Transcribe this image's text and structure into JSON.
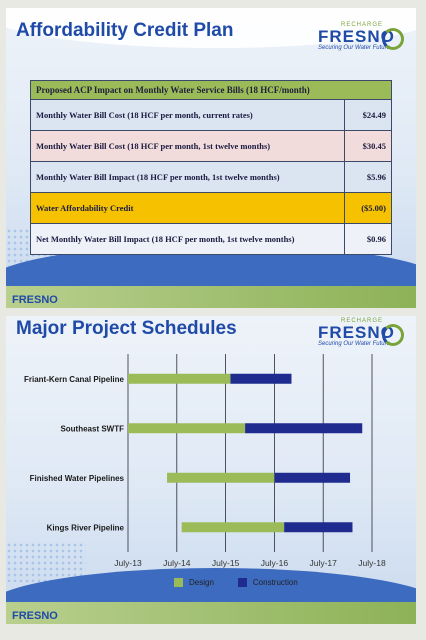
{
  "slide1": {
    "title": "Affordability Credit Plan",
    "logo": {
      "top": "RECHARGE",
      "main": "FRESNO",
      "tagline": "Securing Our Water Future"
    },
    "footer_logo": "FRESNO",
    "table": {
      "header": "Proposed ACP Impact on Monthly Water Service Bills (18 HCF/month)",
      "rows": [
        {
          "label": "Monthly Water Bill Cost (18 HCF per month, current rates)",
          "value": "$24.49"
        },
        {
          "label": "Monthly Water Bill Cost (18 HCF per month, 1st twelve months)",
          "value": "$30.45"
        },
        {
          "label": "Monthly Water Bill Impact (18 HCF per month, 1st twelve months)",
          "value": "$5.96"
        },
        {
          "label": "Water Affordability Credit",
          "value": "($5.00)"
        },
        {
          "label": "Net Monthly Water Bill Impact (18 HCF per month, 1st twelve months)",
          "value": "$0.96"
        }
      ]
    }
  },
  "slide2": {
    "title": "Major Project Schedules",
    "logo": {
      "top": "RECHARGE",
      "main": "FRESNO",
      "tagline": "Securing Our Water Future"
    },
    "footer_logo": "FRESNO"
  },
  "colors": {
    "design": "#9bbb59",
    "construction": "#1f2b8f",
    "title": "#1f4aa8"
  },
  "chart_data": {
    "type": "bar",
    "orientation": "horizontal-gantt",
    "title": "Major Project Schedules",
    "x_ticks": [
      "July-13",
      "July-14",
      "July-15",
      "July-16",
      "July-17",
      "July-18"
    ],
    "xlim": [
      2013.5,
      2018.5
    ],
    "categories": [
      "Friant-Kern Canal Pipeline",
      "Southeast SWTF",
      "Finished Water Pipelines",
      "Kings River Pipeline"
    ],
    "series": [
      {
        "name": "Design",
        "ranges": [
          [
            2013.5,
            2015.6
          ],
          [
            2013.5,
            2015.9
          ],
          [
            2014.3,
            2016.5
          ],
          [
            2014.6,
            2016.7
          ]
        ]
      },
      {
        "name": "Construction",
        "ranges": [
          [
            2015.6,
            2016.85
          ],
          [
            2015.9,
            2018.3
          ],
          [
            2016.5,
            2018.05
          ],
          [
            2016.7,
            2018.1
          ]
        ]
      }
    ],
    "grid": true,
    "legend": "bottom-center"
  }
}
